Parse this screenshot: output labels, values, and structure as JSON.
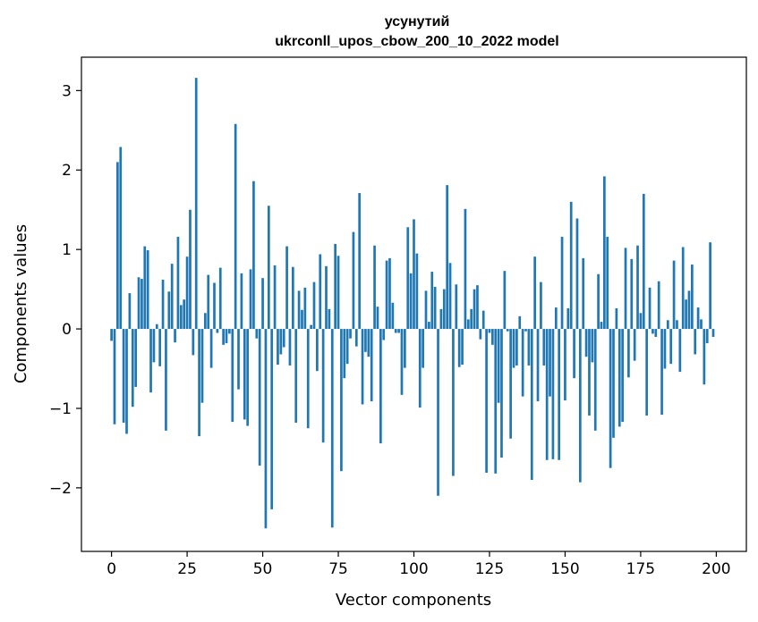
{
  "chart_data": {
    "type": "bar",
    "title": "усунутий",
    "subtitle": "ukrconll_upos_cbow_200_10_2022 model",
    "xlabel": "Vector components",
    "ylabel": "Components values",
    "xlim": [
      -9.95,
      209.95
    ],
    "ylim": [
      -2.8,
      3.42
    ],
    "xticks": [
      0,
      25,
      50,
      75,
      100,
      125,
      150,
      175,
      200
    ],
    "yticks": [
      -2,
      -1,
      0,
      1,
      2,
      3
    ],
    "xtick_labels": [
      "0",
      "25",
      "50",
      "75",
      "100",
      "125",
      "150",
      "175",
      "200"
    ],
    "ytick_labels": [
      "−2",
      "−1",
      "0",
      "1",
      "2",
      "3"
    ],
    "grid": false,
    "bar_color": "#1f77b4",
    "values": [
      -0.15,
      -1.2,
      2.1,
      2.29,
      -1.18,
      -1.32,
      0.45,
      -0.98,
      -0.73,
      0.65,
      0.63,
      1.04,
      0.99,
      -0.8,
      -0.42,
      0.06,
      -0.47,
      0.62,
      -1.28,
      0.47,
      0.82,
      -0.17,
      1.16,
      0.3,
      0.37,
      0.91,
      1.5,
      -0.33,
      3.16,
      -1.35,
      -0.93,
      0.2,
      0.68,
      -0.49,
      0.58,
      -0.05,
      0.77,
      -0.2,
      -0.18,
      -0.06,
      -1.17,
      2.58,
      -0.76,
      0.7,
      -1.14,
      -1.22,
      0.75,
      1.86,
      -0.12,
      -1.72,
      0.64,
      -2.51,
      1.55,
      -2.27,
      0.8,
      -0.45,
      -0.32,
      -0.23,
      1.04,
      -0.46,
      0.78,
      -1.18,
      0.48,
      0.24,
      0.52,
      -1.25,
      0.05,
      0.59,
      -0.53,
      0.94,
      -1.43,
      0.79,
      0.25,
      -2.5,
      1.07,
      0.92,
      -1.79,
      -0.62,
      -0.44,
      -0.12,
      1.22,
      -0.22,
      1.71,
      -0.95,
      -0.29,
      -0.35,
      -0.91,
      1.05,
      0.28,
      -1.44,
      -0.14,
      0.86,
      0.89,
      0.33,
      -0.05,
      -0.05,
      -0.83,
      -0.49,
      1.28,
      0.7,
      1.38,
      0.95,
      -0.99,
      -0.49,
      0.48,
      0.09,
      0.72,
      0.53,
      -2.1,
      0.25,
      0.5,
      1.81,
      0.83,
      -1.85,
      0.56,
      -0.48,
      -0.45,
      1.51,
      0.12,
      0.25,
      0.5,
      0.55,
      -0.13,
      0.23,
      -1.81,
      -0.05,
      -0.2,
      -1.82,
      -0.93,
      -1.62,
      0.73,
      -0.03,
      -1.38,
      -0.49,
      -0.46,
      0.16,
      -0.85,
      -0.03,
      -0.46,
      -1.9,
      0.91,
      -0.91,
      0.59,
      -0.46,
      -1.65,
      -0.85,
      -1.64,
      0.27,
      -1.65,
      1.16,
      -0.9,
      0.26,
      1.6,
      -0.62,
      1.39,
      -1.93,
      0.89,
      -0.35,
      -1.09,
      -0.42,
      -1.28,
      0.69,
      0.09,
      1.92,
      1.16,
      -1.75,
      -1.37,
      0.26,
      -1.23,
      -1.17,
      1.02,
      -0.61,
      0.88,
      -0.4,
      1.05,
      0.2,
      1.7,
      -1.09,
      0.52,
      -0.06,
      -0.1,
      0.6,
      -1.08,
      -0.5,
      0.11,
      -0.44,
      0.86,
      0.11,
      -0.54,
      1.03,
      0.37,
      0.48,
      0.81,
      -0.32,
      0.27,
      0.12,
      -0.7,
      -0.18,
      1.09,
      -0.1
    ]
  }
}
